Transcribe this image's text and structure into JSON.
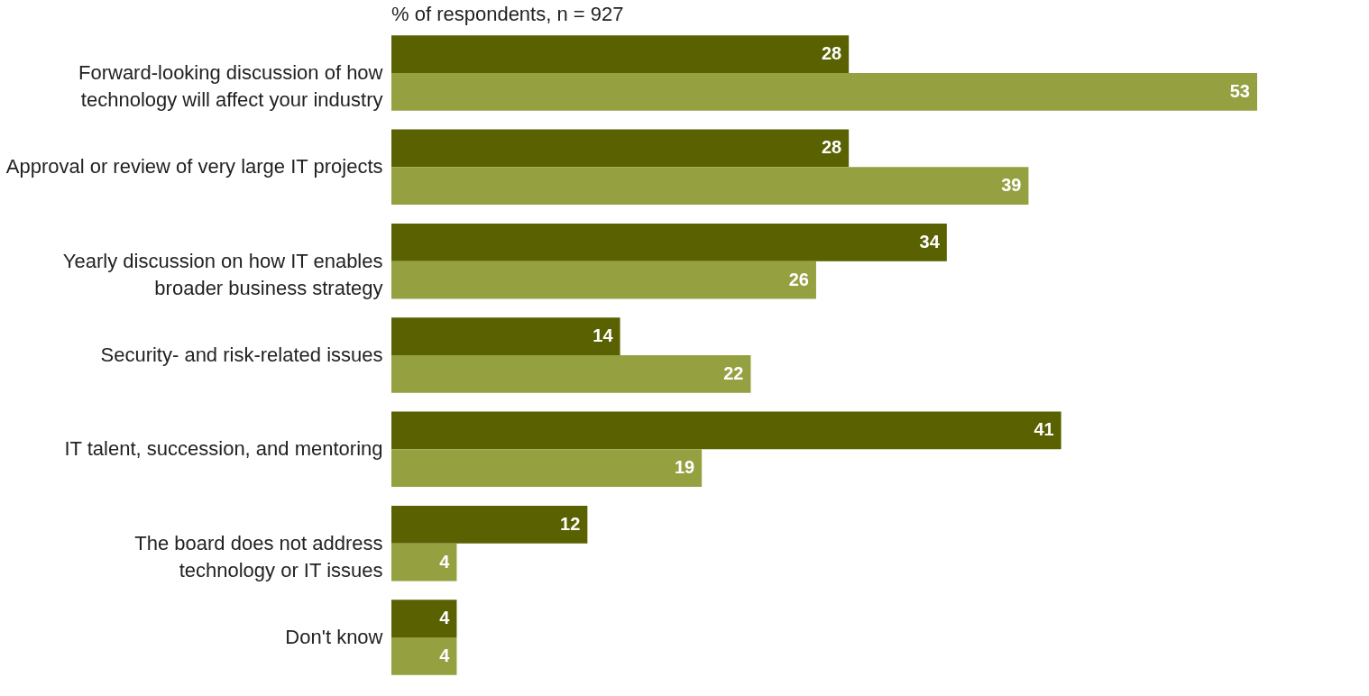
{
  "chart_data": {
    "type": "bar",
    "orientation": "horizontal",
    "title": "% of respondents, n = 927",
    "categories": [
      "Forward-looking discussion of how\ntechnology will affect your industry",
      "Approval or review of very large IT projects",
      "Yearly discussion on how IT enables\nbroader business strategy",
      "Security- and risk-related issues",
      "IT talent, succession, and mentoring",
      "The board does not address\ntechnology or IT issues",
      "Don't know"
    ],
    "series": [
      {
        "color": "#596100",
        "values": [
          28,
          28,
          34,
          14,
          41,
          12,
          4
        ]
      },
      {
        "color": "#95a040",
        "values": [
          53,
          39,
          26,
          22,
          19,
          4,
          4
        ]
      }
    ],
    "data_labels": true,
    "legend": false,
    "grid": false
  }
}
